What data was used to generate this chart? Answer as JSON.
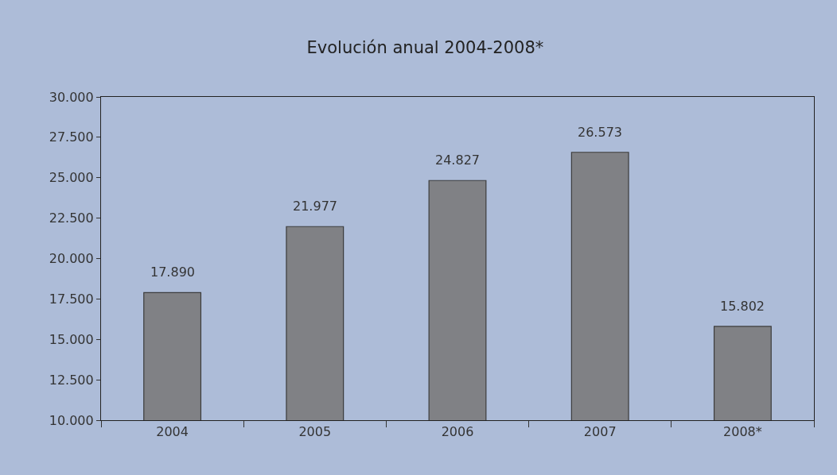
{
  "chart_data": {
    "type": "bar",
    "title": "Evolución anual 2004-2008*",
    "categories": [
      "2004",
      "2005",
      "2006",
      "2007",
      "2008*"
    ],
    "values": [
      17890,
      21977,
      24827,
      26573,
      15802
    ],
    "value_labels": [
      "17.890",
      "21.977",
      "24.827",
      "26.573",
      "15.802"
    ],
    "color": "#808185",
    "ylim": [
      10000,
      30000
    ],
    "yticks": [
      {
        "value": 10000,
        "label": "10.000"
      },
      {
        "value": 12500,
        "label": "12.500"
      },
      {
        "value": 15000,
        "label": "15.000"
      },
      {
        "value": 17500,
        "label": "17.500"
      },
      {
        "value": 20000,
        "label": "20.000"
      },
      {
        "value": 22500,
        "label": "22.500"
      },
      {
        "value": 25000,
        "label": "25.000"
      },
      {
        "value": 27500,
        "label": "27.500"
      },
      {
        "value": 30000,
        "label": "30.000"
      }
    ]
  }
}
